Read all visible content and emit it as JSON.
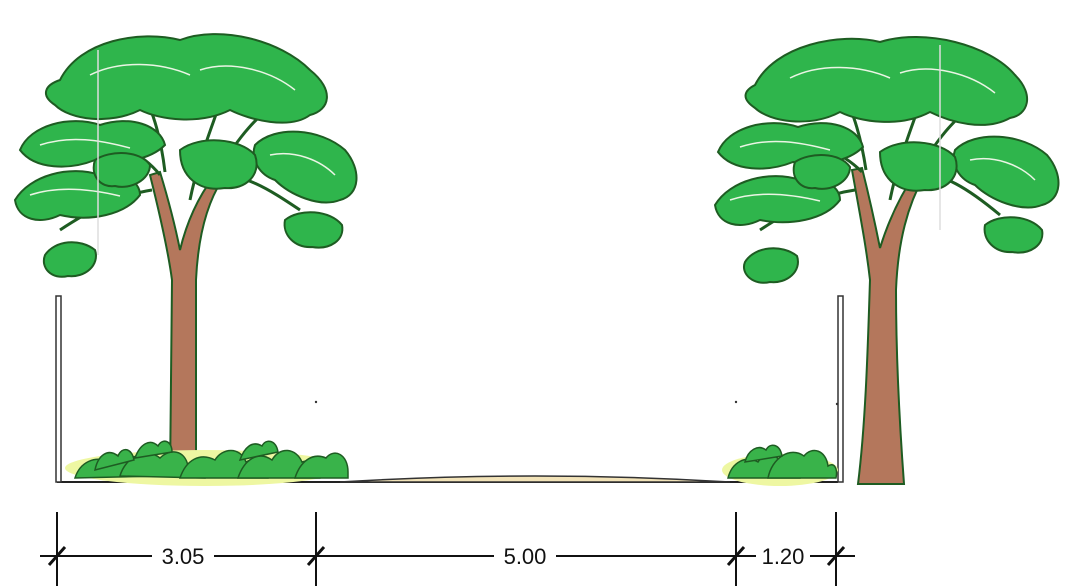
{
  "dimensions": [
    {
      "label": "3.05"
    },
    {
      "label": "5.00"
    },
    {
      "label": "1.20"
    }
  ],
  "colors": {
    "foliage": "#2fb54c",
    "foliage_outline": "#1e5c22",
    "trunk": "#b4775c",
    "shrub": "#39b34a",
    "shrub_highlight": "#eef7a2",
    "road": "#f2e3b8",
    "line": "#222222"
  },
  "icons": [
    "tree-icon",
    "shrub-icon",
    "wall-post-icon"
  ]
}
